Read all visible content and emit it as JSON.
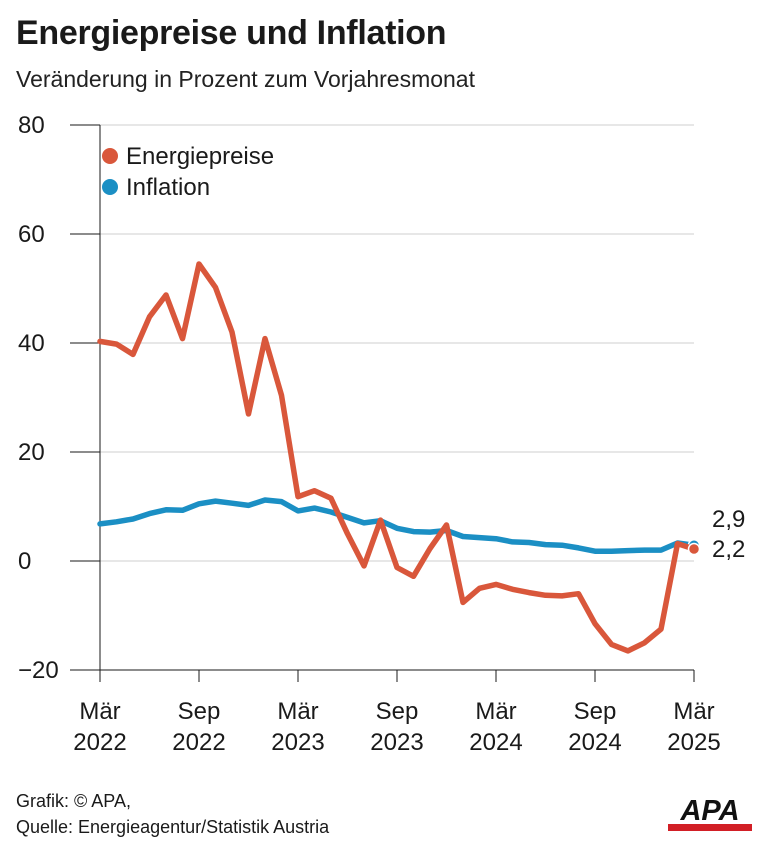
{
  "title": "Energiepreise und Inflation",
  "subtitle": "Veränderung in Prozent zum Vorjahresmonat",
  "footer": {
    "line1": "Grafik: © APA,",
    "line2": "Quelle: Energieagentur/Statistik Austria"
  },
  "logo": {
    "text": "APA",
    "color": "#111111",
    "accent": "#d21f26"
  },
  "chart_data": {
    "type": "line",
    "title": "Energiepreise und Inflation",
    "subtitle": "Veränderung in Prozent zum Vorjahresmonat",
    "xlabel": "",
    "ylabel": "",
    "ylim": [
      -20,
      80
    ],
    "yticks": [
      -20,
      0,
      20,
      40,
      60,
      80
    ],
    "y_tick_labels": [
      "−20",
      "0",
      "20",
      "40",
      "60",
      "80"
    ],
    "x_ticks": [
      {
        "month": "2022-03",
        "label": [
          "Mär",
          "2022"
        ]
      },
      {
        "month": "2022-09",
        "label": [
          "Sep",
          "2022"
        ]
      },
      {
        "month": "2023-03",
        "label": [
          "Mär",
          "2023"
        ]
      },
      {
        "month": "2023-09",
        "label": [
          "Sep",
          "2023"
        ]
      },
      {
        "month": "2024-03",
        "label": [
          "Mär",
          "2024"
        ]
      },
      {
        "month": "2024-09",
        "label": [
          "Sep",
          "2024"
        ]
      },
      {
        "month": "2025-03",
        "label": [
          "Mär",
          "2025"
        ]
      }
    ],
    "grid": true,
    "legend_position": "top-left",
    "x": [
      "2022-03",
      "2022-04",
      "2022-05",
      "2022-06",
      "2022-07",
      "2022-08",
      "2022-09",
      "2022-10",
      "2022-11",
      "2022-12",
      "2023-01",
      "2023-02",
      "2023-03",
      "2023-04",
      "2023-05",
      "2023-06",
      "2023-07",
      "2023-08",
      "2023-09",
      "2023-10",
      "2023-11",
      "2023-12",
      "2024-01",
      "2024-02",
      "2024-03",
      "2024-04",
      "2024-05",
      "2024-06",
      "2024-07",
      "2024-08",
      "2024-09",
      "2024-10",
      "2024-11",
      "2024-12",
      "2025-01",
      "2025-02",
      "2025-03"
    ],
    "series": [
      {
        "name": "Energiepreise",
        "color": "#d9573b",
        "values": [
          40.3,
          39.8,
          37.9,
          44.8,
          48.8,
          40.8,
          54.5,
          50.2,
          42.0,
          27.0,
          40.8,
          30.4,
          11.8,
          12.9,
          11.5,
          5.0,
          -0.9,
          7.5,
          -1.2,
          -2.8,
          2.3,
          6.6,
          -7.6,
          -5.0,
          -4.3,
          -5.2,
          -5.8,
          -6.3,
          -6.4,
          -6.0,
          -11.5,
          -15.3,
          -16.5,
          -15.0,
          -12.5,
          3.2,
          2.2
        ],
        "end_label": "2,2"
      },
      {
        "name": "Inflation",
        "color": "#1b8fc4",
        "values": [
          6.8,
          7.2,
          7.7,
          8.7,
          9.4,
          9.3,
          10.5,
          11.0,
          10.6,
          10.2,
          11.2,
          10.9,
          9.2,
          9.7,
          9.0,
          8.0,
          7.0,
          7.4,
          6.0,
          5.4,
          5.3,
          5.6,
          4.5,
          4.3,
          4.1,
          3.5,
          3.4,
          3.0,
          2.9,
          2.4,
          1.8,
          1.8,
          1.9,
          2.0,
          2.0,
          3.3,
          2.9
        ],
        "end_label": "2,9"
      }
    ]
  }
}
